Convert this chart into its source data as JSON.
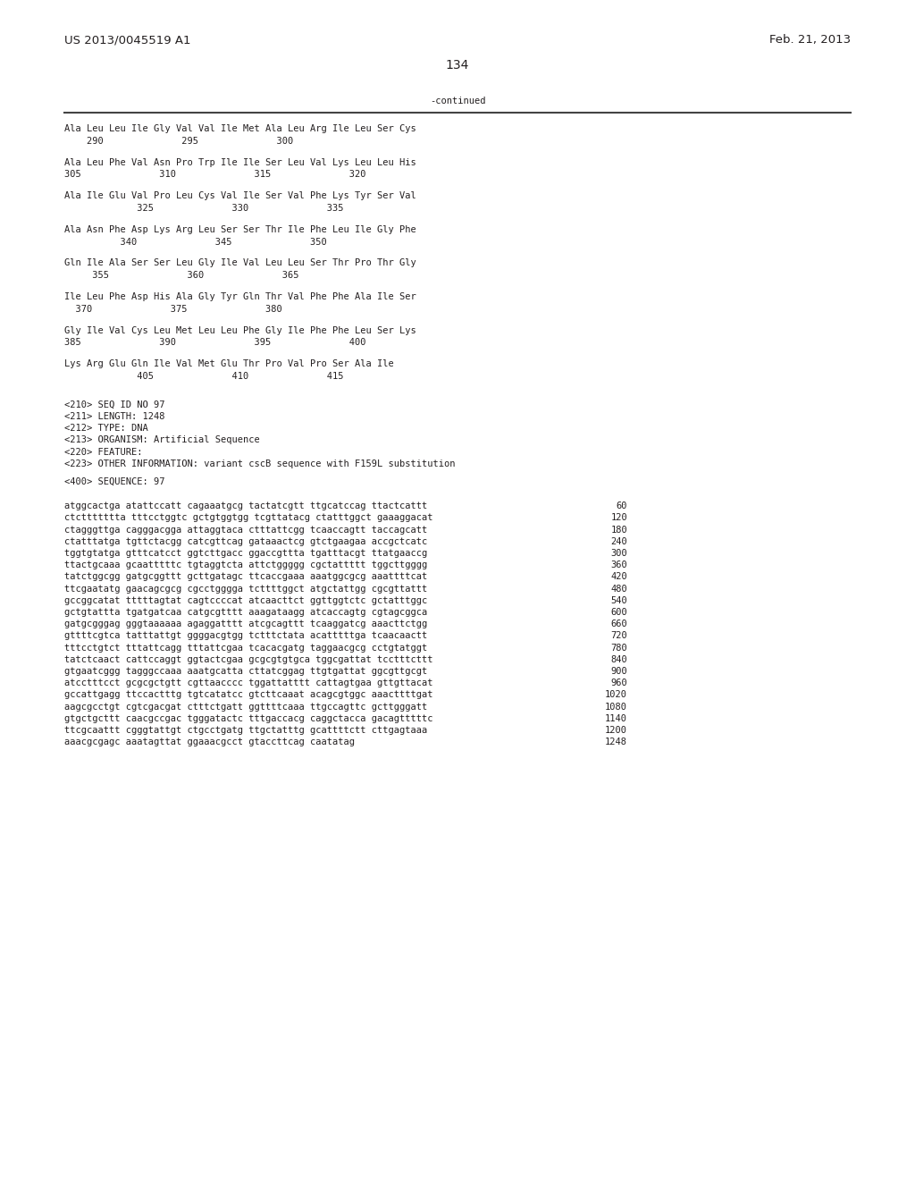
{
  "patent_number": "US 2013/0045519 A1",
  "date": "Feb. 21, 2013",
  "page_number": "134",
  "continued_label": "-continued",
  "background_color": "#ffffff",
  "text_color": "#231f20",
  "font_size_header": 9.5,
  "font_size_body": 7.5,
  "font_size_page": 10.0,
  "amino_acid_lines": [
    "Ala Leu Leu Ile Gly Val Val Ile Met Ala Leu Arg Ile Leu Ser Cys",
    "    290              295              300",
    "",
    "Ala Leu Phe Val Asn Pro Trp Ile Ile Ser Leu Val Lys Leu Leu His",
    "305              310              315              320",
    "",
    "Ala Ile Glu Val Pro Leu Cys Val Ile Ser Val Phe Lys Tyr Ser Val",
    "             325              330              335",
    "",
    "Ala Asn Phe Asp Lys Arg Leu Ser Ser Thr Ile Phe Leu Ile Gly Phe",
    "          340              345              350",
    "",
    "Gln Ile Ala Ser Ser Leu Gly Ile Val Leu Leu Ser Thr Pro Thr Gly",
    "     355              360              365",
    "",
    "Ile Leu Phe Asp His Ala Gly Tyr Gln Thr Val Phe Phe Ala Ile Ser",
    "  370              375              380",
    "",
    "Gly Ile Val Cys Leu Met Leu Leu Phe Gly Ile Phe Phe Leu Ser Lys",
    "385              390              395              400",
    "",
    "Lys Arg Glu Gln Ile Val Met Glu Thr Pro Val Pro Ser Ala Ile",
    "             405              410              415"
  ],
  "metadata_lines": [
    "<210> SEQ ID NO 97",
    "<211> LENGTH: 1248",
    "<212> TYPE: DNA",
    "<213> ORGANISM: Artificial Sequence",
    "<220> FEATURE:",
    "<223> OTHER INFORMATION: variant cscB sequence with F159L substitution",
    "",
    "<400> SEQUENCE: 97"
  ],
  "sequence_lines": [
    [
      "atggcactga atattccatt cagaaatgcg tactatcgtt ttgcatccag ttactcattt",
      "60"
    ],
    [
      "ctcttttttta tttcctggtc gctgtggtgg tcgttatacg ctatttggct gaaaggacat",
      "120"
    ],
    [
      "ctagggttga cagggacgga attaggtaca ctttattcgg tcaaccagtt taccagcatt",
      "180"
    ],
    [
      "ctatttatga tgttctacgg catcgttcag gataaactcg gtctgaagaa accgctcatc",
      "240"
    ],
    [
      "tggtgtatga gtttcatcct ggtcttgacc ggaccgttta tgatttacgt ttatgaaccg",
      "300"
    ],
    [
      "ttactgcaaa gcaatttttc tgtaggtcta attctggggg cgctattttt tggcttgggg",
      "360"
    ],
    [
      "tatctggcgg gatgcggttt gcttgatagc ttcaccgaaa aaatggcgcg aaattttcat",
      "420"
    ],
    [
      "ttcgaatatg gaacagcgcg cgcctgggga tcttttggct atgctattgg cgcgttattt",
      "480"
    ],
    [
      "gccggcatat tttttagtat cagtccccat atcaacttct ggttggtctc gctatttggc",
      "540"
    ],
    [
      "gctgtattta tgatgatcaa catgcgtttt aaagataagg atcaccagtg cgtagcggca",
      "600"
    ],
    [
      "gatgcgggag gggtaaaaaa agaggatttt atcgcagttt tcaaggatcg aaacttctgg",
      "660"
    ],
    [
      "gttttcgtca tatttattgt ggggacgtgg tctttctata acatttttga tcaacaactt",
      "720"
    ],
    [
      "tttcctgtct tttattcagg tttattcgaa tcacacgatg taggaacgcg cctgtatggt",
      "780"
    ],
    [
      "tatctcaact cattccaggt ggtactcgaa gcgcgtgtgca tggcgattat tcctttcttt",
      "840"
    ],
    [
      "gtgaatcggg tagggccaaa aaatgcatta cttatcggag ttgtgattat ggcgttgcgt",
      "900"
    ],
    [
      "atcctttcct gcgcgctgtt cgttaacccc tggattatttt cattagtgaa gttgttacat",
      "960"
    ],
    [
      "gccattgagg ttccactttg tgtcatatcc gtcttcaaat acagcgtggc aaacttttgat",
      "1020"
    ],
    [
      "aagcgcctgt cgtcgacgat ctttctgatt ggttttcaaa ttgccagttc gcttgggatt",
      "1080"
    ],
    [
      "gtgctgcttt caacgccgac tgggatactc tttgaccacg caggctacca gacagtttttc",
      "1140"
    ],
    [
      "ttcgcaattt cgggtattgt ctgcctgatg ttgctatttg gcattttctt cttgagtaaa",
      "1200"
    ],
    [
      "aaacgcgagc aaatagttat ggaaacgcct gtaccttcag caatatag",
      "1248"
    ]
  ]
}
